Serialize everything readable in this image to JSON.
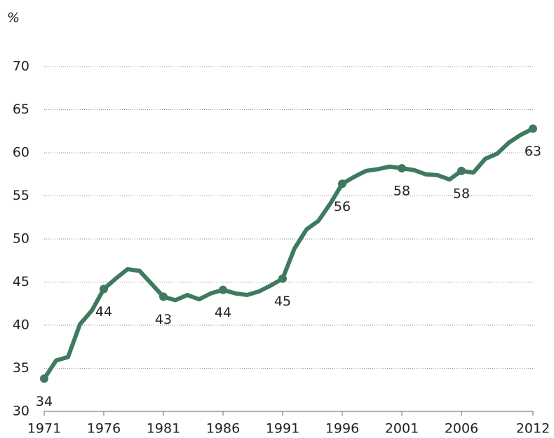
{
  "chart_data": {
    "type": "line",
    "y_unit": "%",
    "x": [
      1971,
      1972,
      1973,
      1974,
      1975,
      1976,
      1977,
      1978,
      1979,
      1980,
      1981,
      1982,
      1983,
      1984,
      1985,
      1986,
      1987,
      1988,
      1989,
      1990,
      1991,
      1992,
      1993,
      1994,
      1995,
      1996,
      1997,
      1998,
      1999,
      2000,
      2001,
      2002,
      2003,
      2004,
      2005,
      2006,
      2007,
      2008,
      2009,
      2010,
      2011,
      2012
    ],
    "series": [
      {
        "color": "#3e7a5e",
        "values": [
          33.8,
          35.9,
          36.3,
          40.1,
          41.7,
          44.2,
          45.4,
          46.5,
          46.3,
          44.8,
          43.3,
          42.9,
          43.5,
          43.0,
          43.7,
          44.1,
          43.7,
          43.5,
          43.9,
          44.6,
          45.4,
          48.9,
          51.1,
          52.1,
          54.1,
          56.4,
          57.2,
          57.9,
          58.1,
          58.4,
          58.2,
          58.0,
          57.5,
          57.4,
          56.9,
          57.9,
          57.7,
          59.3,
          59.9,
          61.2,
          62.1,
          62.8
        ],
        "value_labels": [
          "34",
          null,
          null,
          null,
          null,
          "44",
          null,
          null,
          null,
          null,
          "43",
          null,
          null,
          null,
          null,
          "44",
          null,
          null,
          null,
          null,
          "45",
          null,
          null,
          null,
          null,
          "56",
          null,
          null,
          null,
          null,
          "58",
          null,
          null,
          null,
          null,
          "58",
          null,
          null,
          null,
          null,
          null,
          "63"
        ]
      }
    ],
    "xlim": [
      1971,
      2012
    ],
    "xticks": [
      1971,
      1976,
      1981,
      1986,
      1991,
      1996,
      2001,
      2006,
      2012
    ],
    "ylim": [
      30,
      70
    ],
    "yticks": [
      30,
      35,
      40,
      45,
      50,
      55,
      60,
      65,
      70
    ],
    "grid": true
  }
}
